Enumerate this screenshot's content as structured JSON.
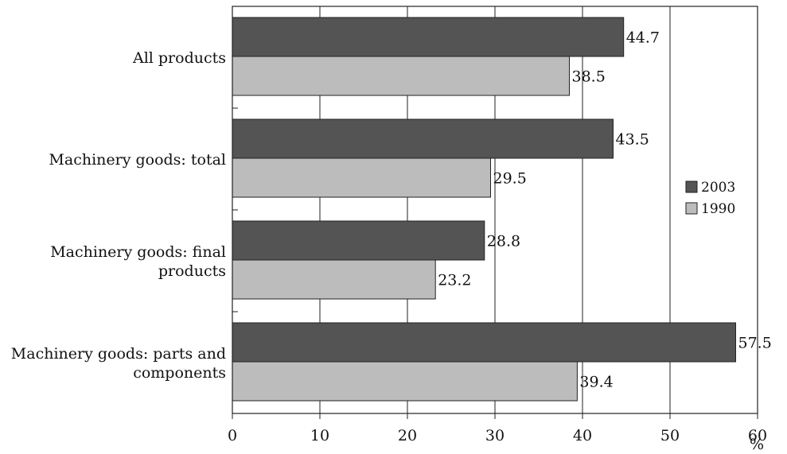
{
  "chart_data": {
    "type": "bar",
    "orientation": "horizontal",
    "categories": [
      [
        "All products"
      ],
      [
        "Machinery goods: total"
      ],
      [
        "Machinery goods: final",
        "products"
      ],
      [
        "Machinery goods: parts and",
        "components"
      ]
    ],
    "series": [
      {
        "name": "2003",
        "values": [
          44.7,
          43.5,
          28.8,
          57.5
        ],
        "color": "#545454"
      },
      {
        "name": "1990",
        "values": [
          38.5,
          29.5,
          23.2,
          39.4
        ],
        "color": "#bcbcbc"
      }
    ],
    "xlim": [
      0,
      60
    ],
    "xticks": [
      0,
      10,
      20,
      30,
      40,
      50,
      60
    ],
    "x_unit": "%",
    "grid": "vertical",
    "legend_position": "right"
  }
}
